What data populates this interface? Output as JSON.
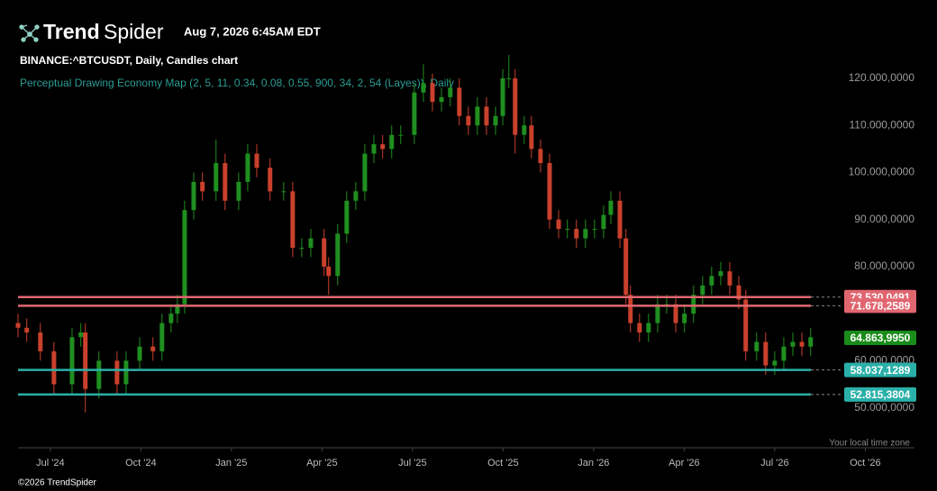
{
  "header": {
    "brand_bold": "Trend",
    "brand_light": "Spider",
    "timestamp": "Aug 7, 2026 6:45AM EDT"
  },
  "footer": {
    "copyright": "©2026 TrendSpider",
    "timezone": "Your local time zone"
  },
  "chart_data": {
    "type": "candlestick",
    "title": "BINANCE:^BTCUSDT, Daily, Candles chart",
    "subtitle": "Perceptual Drawing Economy Map (2, 5, 11, 0.34, 0.08, 0.55, 900, 34, 2, 54 (Layes)), Daily",
    "up_color": "#1f8f1f",
    "down_color": "#c9402c",
    "x": [
      -1.07,
      -0.78,
      -0.33,
      0.12,
      0.72,
      1.01,
      1.16,
      1.61,
      2.21,
      2.51,
      2.96,
      3.4,
      3.7,
      4.0,
      4.21,
      4.45,
      4.75,
      5.04,
      5.49,
      5.79,
      6.24,
      6.54,
      6.84,
      7.28,
      7.73,
      8.03,
      8.33,
      8.63,
      9.07,
      9.22,
      9.52,
      9.82,
      10.12,
      10.42,
      10.72,
      11.01,
      11.31,
      11.61,
      12.06,
      12.36,
      12.66,
      12.96,
      13.25,
      13.55,
      13.85,
      14.15,
      14.45,
      14.75,
      14.99,
      15.19,
      15.4,
      15.7,
      15.94,
      16.24,
      16.54,
      16.84,
      17.13,
      17.43,
      17.73,
      18.03,
      18.33,
      18.57,
      18.87,
      19.07,
      19.22,
      19.52,
      19.82,
      20.12,
      20.42,
      20.72,
      21.01,
      21.31,
      21.61,
      21.91,
      22.21,
      22.51,
      22.81,
      23.04,
      23.4,
      23.7,
      24.0,
      24.3,
      24.6,
      24.9,
      25.19
    ],
    "open": [
      68000,
      67000,
      66000,
      62000,
      55000,
      65000,
      66000,
      54000,
      60000,
      55000,
      60000,
      63000,
      62000,
      68000,
      70000,
      72000,
      92000,
      98000,
      96000,
      102000,
      94000,
      98000,
      104000,
      101000,
      96000,
      96000,
      84000,
      84000,
      86000,
      80000,
      78000,
      87000,
      94000,
      96000,
      104000,
      106000,
      105000,
      108000,
      108000,
      117000,
      119000,
      115000,
      116000,
      118000,
      112000,
      110000,
      114000,
      110000,
      112000,
      120000,
      120000,
      108000,
      110000,
      105000,
      102000,
      90000,
      88000,
      88000,
      86000,
      88000,
      88000,
      91000,
      94000,
      86000,
      74000,
      68000,
      66000,
      68000,
      72000,
      72000,
      68000,
      70000,
      74000,
      76000,
      78000,
      79000,
      76000,
      73000,
      62000,
      64000,
      59000,
      60000,
      63000,
      64000,
      63000
    ],
    "high": [
      70000,
      69000,
      68000,
      64000,
      67000,
      68000,
      68000,
      62000,
      62000,
      62000,
      65000,
      65000,
      70000,
      72000,
      74000,
      94000,
      100000,
      100000,
      107000,
      104000,
      100000,
      106000,
      106000,
      103000,
      98000,
      98000,
      86000,
      88000,
      88000,
      82000,
      89000,
      96000,
      98000,
      106000,
      108000,
      108000,
      110000,
      110000,
      119000,
      123000,
      121000,
      118000,
      120000,
      120000,
      114000,
      116000,
      116000,
      114000,
      122000,
      125000,
      122000,
      112000,
      112000,
      107000,
      104000,
      92000,
      90000,
      90000,
      90000,
      90000,
      93000,
      96000,
      96000,
      88000,
      76000,
      70000,
      70000,
      74000,
      74000,
      74000,
      72000,
      76000,
      78000,
      80000,
      81000,
      81000,
      78000,
      75000,
      66000,
      66000,
      62000,
      65000,
      66000,
      66000,
      67000
    ],
    "low": [
      65000,
      64000,
      60000,
      53000,
      53000,
      63000,
      49000,
      52000,
      53000,
      53000,
      58000,
      60000,
      60000,
      66000,
      68000,
      70000,
      90000,
      94000,
      94000,
      92000,
      92000,
      96000,
      99000,
      94000,
      94000,
      82000,
      82000,
      82000,
      78000,
      74000,
      76000,
      85000,
      92000,
      94000,
      102000,
      103000,
      103000,
      106000,
      106000,
      115000,
      113000,
      113000,
      114000,
      110000,
      108000,
      108000,
      108000,
      108000,
      110000,
      118000,
      104000,
      106000,
      103000,
      100000,
      88000,
      86000,
      86000,
      84000,
      84000,
      86000,
      86000,
      89000,
      84000,
      72000,
      66000,
      64000,
      64000,
      66000,
      70000,
      66000,
      66000,
      68000,
      72000,
      74000,
      76000,
      74000,
      71000,
      60000,
      60000,
      57000,
      57000,
      58000,
      61000,
      61000,
      61000
    ],
    "close": [
      67000,
      66000,
      62000,
      55000,
      65000,
      66000,
      54000,
      60000,
      55000,
      60000,
      63000,
      62000,
      68000,
      70000,
      72000,
      92000,
      98000,
      96000,
      102000,
      94000,
      98000,
      104000,
      101000,
      96000,
      96000,
      84000,
      84000,
      86000,
      80000,
      78000,
      87000,
      94000,
      96000,
      104000,
      106000,
      105000,
      108000,
      108000,
      117000,
      119000,
      115000,
      116000,
      118000,
      112000,
      110000,
      114000,
      110000,
      112000,
      120000,
      120000,
      108000,
      110000,
      105000,
      102000,
      90000,
      88000,
      88000,
      86000,
      88000,
      88000,
      91000,
      94000,
      86000,
      74000,
      68000,
      66000,
      68000,
      72000,
      72000,
      68000,
      70000,
      74000,
      76000,
      78000,
      79000,
      76000,
      73000,
      62000,
      64000,
      59000,
      60000,
      63000,
      64000,
      63000,
      65000
    ],
    "xlim": [
      -1.07,
      28.63
    ],
    "xticks": [
      {
        "value": 0,
        "label": "Jul '24"
      },
      {
        "value": 3,
        "label": "Oct '24"
      },
      {
        "value": 6,
        "label": "Jan '25"
      },
      {
        "value": 9,
        "label": "Apr '25"
      },
      {
        "value": 12,
        "label": "Jul '25"
      },
      {
        "value": 15,
        "label": "Oct '25"
      },
      {
        "value": 18,
        "label": "Jan '26"
      },
      {
        "value": 21,
        "label": "Apr '26"
      },
      {
        "value": 24,
        "label": "Jul '26"
      },
      {
        "value": 27,
        "label": "Oct '26"
      }
    ],
    "ylim": [
      41500,
      125170
    ],
    "yticks": [
      {
        "value": 50000,
        "label": "50.000,0000"
      },
      {
        "value": 60000,
        "label": "60.000,0000"
      },
      {
        "value": 80000,
        "label": "80.000,0000"
      },
      {
        "value": 90000,
        "label": "90.000,0000"
      },
      {
        "value": 100000,
        "label": "100.000,0000"
      },
      {
        "value": 110000,
        "label": "110.000,0000"
      },
      {
        "value": 120000,
        "label": "120.000,0000"
      }
    ],
    "levels": [
      {
        "value": 73530.0491,
        "label": "73.530,0491",
        "color": "#e06670"
      },
      {
        "value": 71678.2589,
        "label": "71.678,2589",
        "color": "#e06670"
      },
      {
        "value": 58037.1289,
        "label": "58.037,1289",
        "color": "#2ab0a8"
      },
      {
        "value": 52815.3804,
        "label": "52.815,3804",
        "color": "#2ab0a8"
      }
    ],
    "last_price": {
      "value": 64863.995,
      "label": "64.863,9950",
      "color": "#1a8c1a"
    }
  }
}
